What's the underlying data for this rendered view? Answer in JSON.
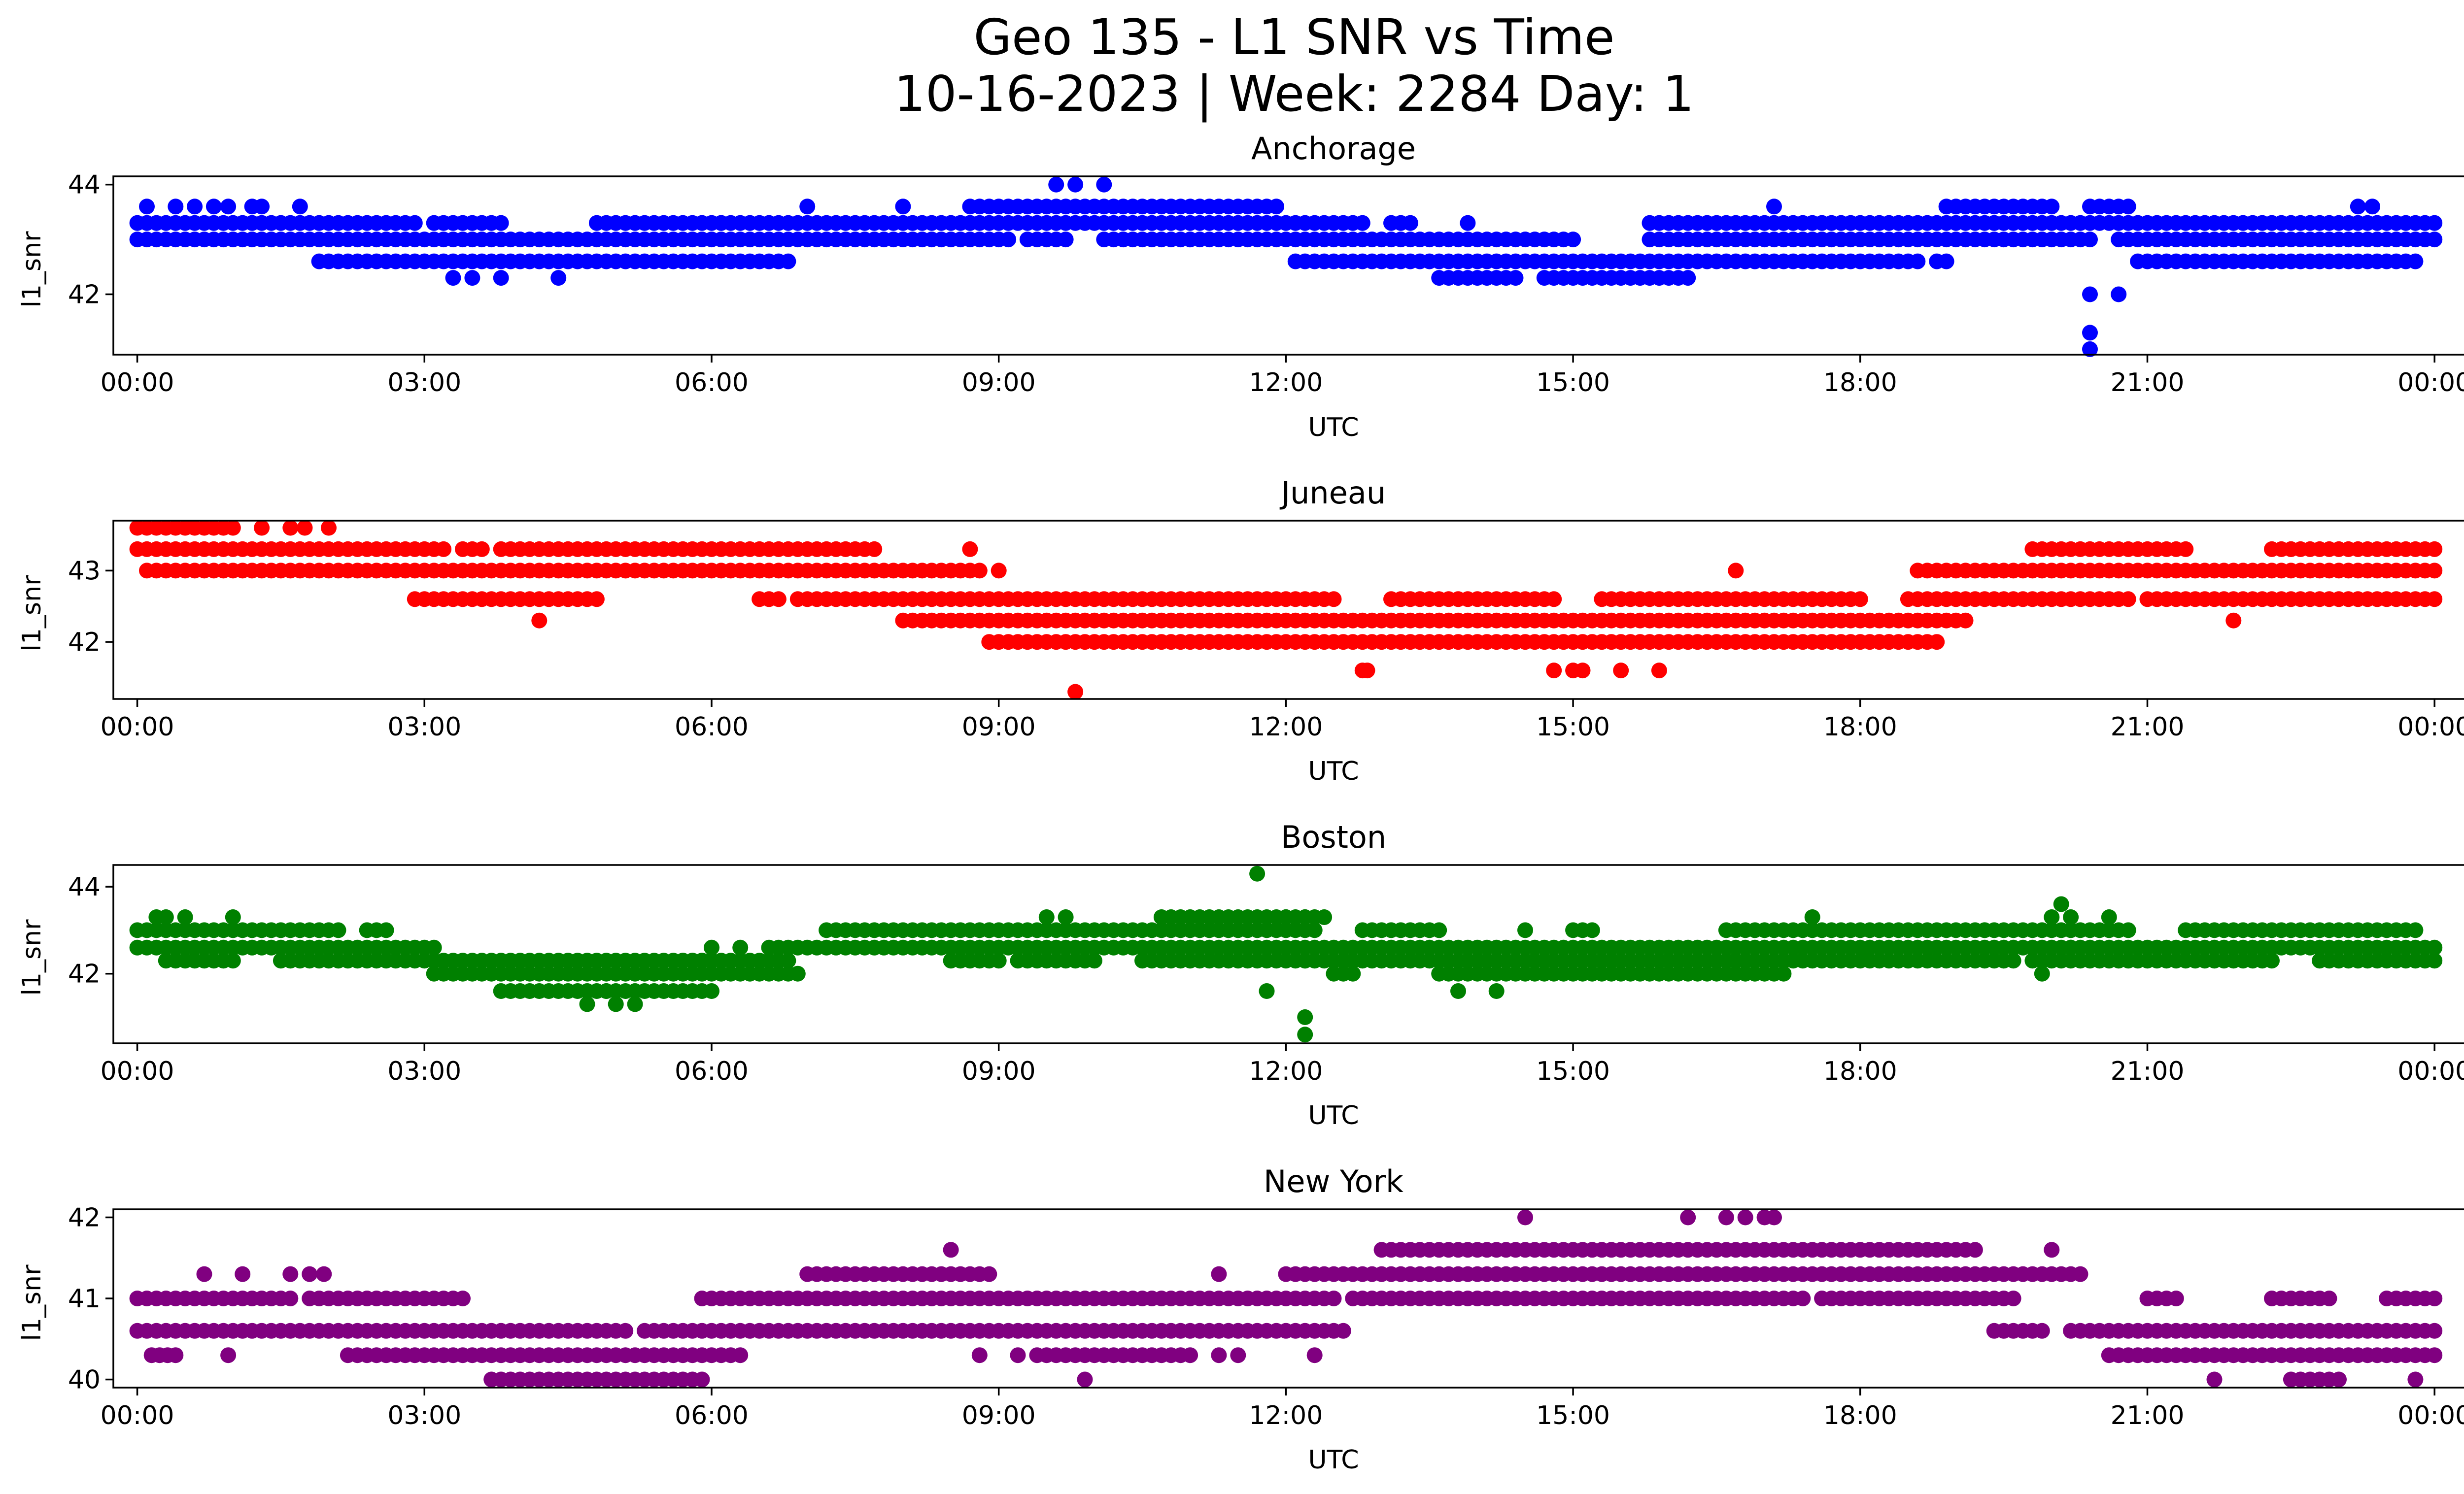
{
  "figure": {
    "title_line1": "Geo 135 - L1 SNR vs Time",
    "title_line2": "10-16-2023 | Week: 2284 Day: 1"
  },
  "chart_data": [
    {
      "type": "scatter",
      "title": "Anchorage",
      "xlabel": "UTC",
      "ylabel": "l1_snr",
      "color": "#0000ff",
      "xlim": [
        -0.25,
        25.25
      ],
      "ylim": [
        40.9,
        44.15
      ],
      "x_ticks": [
        0,
        3,
        6,
        9,
        12,
        15,
        18,
        21,
        24
      ],
      "x_tick_labels": [
        "00:00",
        "03:00",
        "06:00",
        "09:00",
        "12:00",
        "15:00",
        "18:00",
        "21:00",
        "00:00"
      ],
      "y_ticks": [
        42,
        44
      ],
      "y_tick_labels": [
        "42",
        "44"
      ],
      "levels": [
        {
          "y": 43.3,
          "ranges": [
            [
              0,
              2.9
            ],
            [
              3.2,
              3.7
            ],
            [
              4.8,
              6.1
            ],
            [
              6.1,
              8.7
            ],
            [
              8.7,
              12.0
            ],
            [
              12.1,
              12.8
            ],
            [
              13.1,
              13.3
            ],
            [
              15.8,
              19.4
            ],
            [
              19.4,
              24
            ]
          ]
        },
        {
          "y": 43.0,
          "ranges": [
            [
              0,
              9.1
            ],
            [
              9.3,
              9.7
            ],
            [
              10.1,
              10.4
            ],
            [
              10.5,
              11.3
            ],
            [
              11.3,
              15.0
            ],
            [
              15.8,
              20.4
            ],
            [
              20.7,
              24
            ]
          ]
        },
        {
          "y": 42.6,
          "ranges": [
            [
              1.9,
              6.5
            ],
            [
              6.6,
              6.8
            ],
            [
              12.1,
              12.4
            ],
            [
              12.5,
              16.2
            ],
            [
              16.3,
              18.6
            ],
            [
              18.8,
              18.9
            ],
            [
              20.9,
              23.6
            ],
            [
              23.7,
              23.8
            ]
          ]
        },
        {
          "y": 43.6,
          "ranges": [
            [
              8.7,
              11.9
            ],
            [
              18.9,
              20.0
            ],
            [
              20.4,
              20.6
            ],
            [
              20.7,
              20.8
            ]
          ]
        },
        {
          "y": 42.3,
          "ranges": [
            [
              13.6,
              14.4
            ],
            [
              14.7,
              16.2
            ]
          ]
        }
      ],
      "points": [
        {
          "x": 0.1,
          "y": 43.6
        },
        {
          "x": 0.4,
          "y": 43.6
        },
        {
          "x": 0.6,
          "y": 43.6
        },
        {
          "x": 0.8,
          "y": 43.6
        },
        {
          "x": 0.95,
          "y": 43.6
        },
        {
          "x": 1.2,
          "y": 43.6
        },
        {
          "x": 1.3,
          "y": 43.6
        },
        {
          "x": 1.7,
          "y": 43.6
        },
        {
          "x": 3.1,
          "y": 43.3
        },
        {
          "x": 3.8,
          "y": 43.3
        },
        {
          "x": 3.3,
          "y": 42.3
        },
        {
          "x": 3.5,
          "y": 42.3
        },
        {
          "x": 3.8,
          "y": 42.3
        },
        {
          "x": 4.4,
          "y": 42.3
        },
        {
          "x": 7.0,
          "y": 43.6
        },
        {
          "x": 8.0,
          "y": 43.6
        },
        {
          "x": 9.6,
          "y": 44.0
        },
        {
          "x": 9.8,
          "y": 44.0
        },
        {
          "x": 10.1,
          "y": 44.0
        },
        {
          "x": 10.3,
          "y": 43.0
        },
        {
          "x": 11.0,
          "y": 43.0
        },
        {
          "x": 13.9,
          "y": 43.3
        },
        {
          "x": 17.1,
          "y": 43.6
        },
        {
          "x": 23.2,
          "y": 43.6
        },
        {
          "x": 23.35,
          "y": 43.6
        },
        {
          "x": 20.4,
          "y": 42.0
        },
        {
          "x": 20.4,
          "y": 41.3
        },
        {
          "x": 20.4,
          "y": 41.0
        },
        {
          "x": 20.7,
          "y": 42.0
        }
      ]
    },
    {
      "type": "scatter",
      "title": "Juneau",
      "xlabel": "UTC",
      "ylabel": "l1_snr",
      "color": "#ff0000",
      "xlim": [
        -0.25,
        25.25
      ],
      "ylim": [
        41.2,
        43.7
      ],
      "x_ticks": [
        0,
        3,
        6,
        9,
        12,
        15,
        18,
        21,
        24
      ],
      "x_tick_labels": [
        "00:00",
        "03:00",
        "06:00",
        "09:00",
        "12:00",
        "15:00",
        "18:00",
        "21:00",
        "00:00"
      ],
      "y_ticks": [
        42,
        43
      ],
      "y_tick_labels": [
        "42",
        "43"
      ],
      "levels": [
        {
          "y": 43.3,
          "ranges": [
            [
              0,
              3.2
            ],
            [
              3.4,
              3.6
            ],
            [
              3.8,
              4.0
            ],
            [
              4.1,
              7.3
            ],
            [
              7.4,
              7.7
            ],
            [
              19.8,
              21.2
            ],
            [
              21.3,
              21.4
            ],
            [
              22.3,
              24
            ]
          ]
        },
        {
          "y": 43.0,
          "ranges": [
            [
              0.1,
              8.8
            ],
            [
              18.6,
              24
            ]
          ]
        },
        {
          "y": 42.6,
          "ranges": [
            [
              2.9,
              4.8
            ],
            [
              6.5,
              6.7
            ],
            [
              6.9,
              11.7
            ],
            [
              11.8,
              12.5
            ],
            [
              13.1,
              14.8
            ],
            [
              15.3,
              16.8
            ],
            [
              16.9,
              18.0
            ],
            [
              18.5,
              20.1
            ],
            [
              20.2,
              20.8
            ],
            [
              21.0,
              24
            ]
          ]
        },
        {
          "y": 42.3,
          "ranges": [
            [
              8.1,
              19.1
            ]
          ]
        },
        {
          "y": 42.0,
          "ranges": [
            [
              8.9,
              18.8
            ]
          ]
        },
        {
          "y": 43.6,
          "ranges": [
            [
              0.0,
              1.0
            ]
          ]
        }
      ],
      "points": [
        {
          "x": 1.3,
          "y": 43.6
        },
        {
          "x": 1.6,
          "y": 43.6
        },
        {
          "x": 1.75,
          "y": 43.6
        },
        {
          "x": 2.0,
          "y": 43.6
        },
        {
          "x": 4.2,
          "y": 42.3
        },
        {
          "x": 8.0,
          "y": 42.3
        },
        {
          "x": 8.7,
          "y": 43.3
        },
        {
          "x": 9.0,
          "y": 43.0
        },
        {
          "x": 9.8,
          "y": 41.3
        },
        {
          "x": 12.8,
          "y": 41.6
        },
        {
          "x": 12.85,
          "y": 41.6
        },
        {
          "x": 14.8,
          "y": 41.6
        },
        {
          "x": 15.0,
          "y": 41.6
        },
        {
          "x": 15.1,
          "y": 41.6
        },
        {
          "x": 15.5,
          "y": 41.6
        },
        {
          "x": 15.9,
          "y": 41.6
        },
        {
          "x": 16.7,
          "y": 43.0
        },
        {
          "x": 18.3,
          "y": 42.0
        },
        {
          "x": 21.9,
          "y": 42.3
        },
        {
          "x": 22.5,
          "y": 43.3
        }
      ]
    },
    {
      "type": "scatter",
      "title": "Boston",
      "xlabel": "UTC",
      "ylabel": "l1_snr",
      "color": "#008000",
      "xlim": [
        -0.25,
        25.25
      ],
      "ylim": [
        40.4,
        44.5
      ],
      "x_ticks": [
        0,
        3,
        6,
        9,
        12,
        15,
        18,
        21,
        24
      ],
      "x_tick_labels": [
        "00:00",
        "03:00",
        "06:00",
        "09:00",
        "12:00",
        "15:00",
        "18:00",
        "21:00",
        "00:00"
      ],
      "y_ticks": [
        42,
        44
      ],
      "y_tick_labels": [
        "42",
        "44"
      ],
      "levels": [
        {
          "y": 43.0,
          "ranges": [
            [
              0,
              2.1
            ],
            [
              2.4,
              2.6
            ],
            [
              7.2,
              8.9
            ],
            [
              8.9,
              12.3
            ],
            [
              12.8,
              13.6
            ],
            [
              15.0,
              15.2
            ],
            [
              16.6,
              19.3
            ],
            [
              19.3,
              20.8
            ],
            [
              21.4,
              22.8
            ],
            [
              22.9,
              23.8
            ]
          ]
        },
        {
          "y": 42.6,
          "ranges": [
            [
              0,
              3.1
            ],
            [
              6.6,
              24
            ]
          ]
        },
        {
          "y": 42.3,
          "ranges": [
            [
              0.3,
              1.0
            ],
            [
              1.5,
              6.0
            ],
            [
              5.7,
              6.8
            ],
            [
              8.5,
              9.0
            ],
            [
              9.2,
              10.0
            ],
            [
              10.5,
              12.2
            ],
            [
              12.2,
              19.6
            ],
            [
              19.8,
              22.3
            ],
            [
              22.8,
              24
            ]
          ]
        },
        {
          "y": 42.0,
          "ranges": [
            [
              3.1,
              6.9
            ],
            [
              12.5,
              12.7
            ],
            [
              13.6,
              17.2
            ]
          ]
        },
        {
          "y": 41.6,
          "ranges": [
            [
              3.8,
              4.9
            ],
            [
              4.9,
              6.0
            ]
          ]
        },
        {
          "y": 43.3,
          "ranges": [
            [
              10.7,
              12.4
            ]
          ]
        }
      ],
      "points": [
        {
          "x": 0.2,
          "y": 43.3
        },
        {
          "x": 0.3,
          "y": 43.3
        },
        {
          "x": 0.5,
          "y": 43.3
        },
        {
          "x": 1.0,
          "y": 43.3
        },
        {
          "x": 4.7,
          "y": 41.3
        },
        {
          "x": 5.0,
          "y": 41.3
        },
        {
          "x": 5.2,
          "y": 41.3
        },
        {
          "x": 6.0,
          "y": 42.6
        },
        {
          "x": 6.3,
          "y": 42.6
        },
        {
          "x": 9.5,
          "y": 43.3
        },
        {
          "x": 9.7,
          "y": 43.3
        },
        {
          "x": 11.7,
          "y": 44.3
        },
        {
          "x": 11.8,
          "y": 41.6
        },
        {
          "x": 12.0,
          "y": 43.3
        },
        {
          "x": 12.2,
          "y": 43.3
        },
        {
          "x": 12.2,
          "y": 41.0
        },
        {
          "x": 12.2,
          "y": 40.6
        },
        {
          "x": 13.8,
          "y": 41.6
        },
        {
          "x": 14.2,
          "y": 41.6
        },
        {
          "x": 14.5,
          "y": 43.0
        },
        {
          "x": 17.5,
          "y": 43.3
        },
        {
          "x": 19.9,
          "y": 42.0
        },
        {
          "x": 20.1,
          "y": 43.6
        },
        {
          "x": 20.0,
          "y": 43.3
        },
        {
          "x": 20.2,
          "y": 43.3
        },
        {
          "x": 20.6,
          "y": 43.3
        },
        {
          "x": 20.2,
          "y": 42.6
        }
      ]
    },
    {
      "type": "scatter",
      "title": "New York",
      "xlabel": "UTC",
      "ylabel": "l1_snr",
      "color": "#800080",
      "xlim": [
        -0.25,
        25.25
      ],
      "ylim": [
        39.9,
        42.1
      ],
      "x_ticks": [
        0,
        3,
        6,
        9,
        12,
        15,
        18,
        21,
        24
      ],
      "x_tick_labels": [
        "00:00",
        "03:00",
        "06:00",
        "09:00",
        "12:00",
        "15:00",
        "18:00",
        "21:00",
        "00:00"
      ],
      "y_ticks": [
        40,
        41,
        42
      ],
      "y_tick_labels": [
        "40",
        "41",
        "42"
      ],
      "levels": [
        {
          "y": 41.0,
          "ranges": [
            [
              0,
              1.6
            ],
            [
              1.8,
              3.4
            ],
            [
              5.9,
              9.0
            ],
            [
              9.1,
              12.1
            ],
            [
              12.2,
              12.5
            ],
            [
              12.7,
              17.4
            ],
            [
              17.6,
              19.6
            ],
            [
              21.0,
              21.3
            ],
            [
              22.3,
              22.9
            ],
            [
              23.5,
              24
            ]
          ]
        },
        {
          "y": 40.6,
          "ranges": [
            [
              0,
              5.1
            ],
            [
              5.3,
              7.3
            ],
            [
              7.4,
              12.6
            ],
            [
              19.4,
              19.9
            ],
            [
              20.2,
              24
            ]
          ]
        },
        {
          "y": 40.3,
          "ranges": [
            [
              0.15,
              0.4
            ],
            [
              2.2,
              6.3
            ],
            [
              9.4,
              11.0
            ],
            [
              20.6,
              24
            ]
          ]
        },
        {
          "y": 40.0,
          "ranges": [
            [
              3.7,
              5.9
            ],
            [
              22.5,
              23.0
            ]
          ]
        },
        {
          "y": 41.3,
          "ranges": [
            [
              7.0,
              8.9
            ],
            [
              12.0,
              20.3
            ]
          ]
        },
        {
          "y": 41.6,
          "ranges": [
            [
              13.0,
              19.2
            ]
          ]
        }
      ],
      "points": [
        {
          "x": 0.7,
          "y": 41.3
        },
        {
          "x": 1.1,
          "y": 41.3
        },
        {
          "x": 1.6,
          "y": 41.3
        },
        {
          "x": 1.8,
          "y": 41.3
        },
        {
          "x": 1.95,
          "y": 41.3
        },
        {
          "x": 0.95,
          "y": 40.3
        },
        {
          "x": 8.5,
          "y": 41.6
        },
        {
          "x": 8.8,
          "y": 40.3
        },
        {
          "x": 9.2,
          "y": 40.3
        },
        {
          "x": 9.9,
          "y": 40.0
        },
        {
          "x": 11.3,
          "y": 40.3
        },
        {
          "x": 11.5,
          "y": 40.3
        },
        {
          "x": 11.3,
          "y": 41.3
        },
        {
          "x": 12.3,
          "y": 40.3
        },
        {
          "x": 14.5,
          "y": 42.0
        },
        {
          "x": 16.2,
          "y": 42.0
        },
        {
          "x": 16.6,
          "y": 42.0
        },
        {
          "x": 16.8,
          "y": 42.0
        },
        {
          "x": 17.0,
          "y": 42.0
        },
        {
          "x": 17.1,
          "y": 42.0
        },
        {
          "x": 20.0,
          "y": 41.6
        },
        {
          "x": 21.7,
          "y": 40.0
        },
        {
          "x": 23.6,
          "y": 40.3
        },
        {
          "x": 23.8,
          "y": 40.0
        }
      ]
    }
  ]
}
